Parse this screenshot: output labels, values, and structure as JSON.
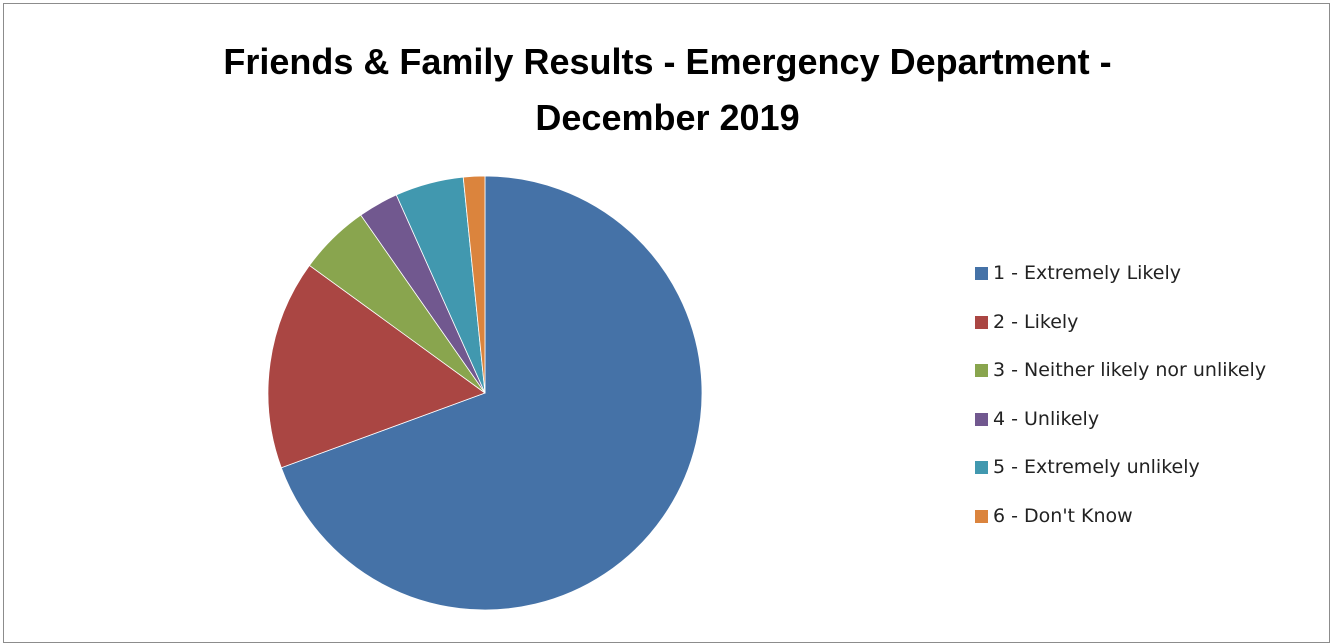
{
  "chart_data": {
    "type": "pie",
    "title_lines": [
      "Friends & Family Results - Emergency Department -",
      "December 2019"
    ],
    "categories": [
      "1 - Extremely Likely",
      "2 - Likely",
      "3 - Neither likely nor unlikely",
      "4 - Unlikely",
      "5 - Extremely unlikely",
      "6 - Don't Know"
    ],
    "values": [
      69.4,
      15.6,
      5.3,
      3.0,
      5.1,
      1.6
    ],
    "colors": [
      "#4572a7",
      "#aa4643",
      "#89a54e",
      "#71588f",
      "#4198af",
      "#db843d"
    ],
    "legend_position": "right",
    "start_angle_deg": 0,
    "direction": "clockwise"
  }
}
